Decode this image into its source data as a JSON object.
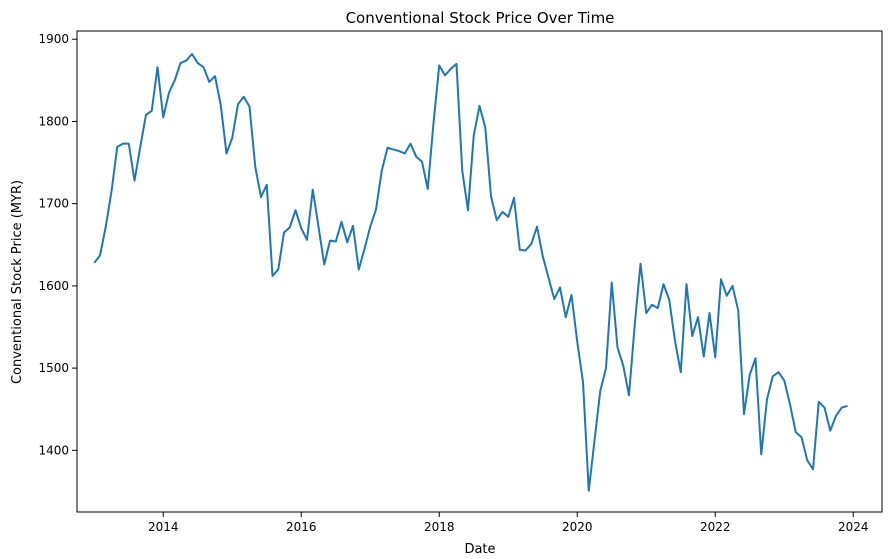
{
  "chart_data": {
    "type": "line",
    "title": "Conventional Stock Price Over Time",
    "xlabel": "Date",
    "ylabel": "Conventional Stock Price (MYR)",
    "x_ticks": [
      "2014",
      "2016",
      "2018",
      "2020",
      "2022",
      "2024"
    ],
    "y_ticks": [
      "1400",
      "1500",
      "1600",
      "1700",
      "1800",
      "1900"
    ],
    "xlim": [
      "2012-10",
      "2024-06"
    ],
    "ylim": [
      1325,
      1910
    ],
    "grid": false,
    "line_color": "#1f77b4",
    "series": [
      {
        "x": [
          "2013-01",
          "2013-02",
          "2013-03",
          "2013-04",
          "2013-05",
          "2013-06",
          "2013-07",
          "2013-08",
          "2013-09",
          "2013-10",
          "2013-11",
          "2013-12",
          "2014-01",
          "2014-02",
          "2014-03",
          "2014-04",
          "2014-05",
          "2014-06",
          "2014-07",
          "2014-08",
          "2014-09",
          "2014-10",
          "2014-11",
          "2014-12",
          "2015-01",
          "2015-02",
          "2015-03",
          "2015-04",
          "2015-05",
          "2015-06",
          "2015-07",
          "2015-08",
          "2015-09",
          "2015-10",
          "2015-11",
          "2015-12",
          "2016-01",
          "2016-02",
          "2016-03",
          "2016-04",
          "2016-05",
          "2016-06",
          "2016-07",
          "2016-08",
          "2016-09",
          "2016-10",
          "2016-11",
          "2016-12",
          "2017-01",
          "2017-02",
          "2017-03",
          "2017-04",
          "2017-05",
          "2017-06",
          "2017-07",
          "2017-08",
          "2017-09",
          "2017-10",
          "2017-11",
          "2017-12",
          "2018-01",
          "2018-02",
          "2018-03",
          "2018-04",
          "2018-05",
          "2018-06",
          "2018-07",
          "2018-08",
          "2018-09",
          "2018-10",
          "2018-11",
          "2018-12",
          "2019-01",
          "2019-02",
          "2019-03",
          "2019-04",
          "2019-05",
          "2019-06",
          "2019-07",
          "2019-08",
          "2019-09",
          "2019-10",
          "2019-11",
          "2019-12",
          "2020-01",
          "2020-02",
          "2020-03",
          "2020-04",
          "2020-05",
          "2020-06",
          "2020-07",
          "2020-08",
          "2020-09",
          "2020-10",
          "2020-11",
          "2020-12",
          "2021-01",
          "2021-02",
          "2021-03",
          "2021-04",
          "2021-05",
          "2021-06",
          "2021-07",
          "2021-08",
          "2021-09",
          "2021-10",
          "2021-11",
          "2021-12",
          "2022-01",
          "2022-02",
          "2022-03",
          "2022-04",
          "2022-05",
          "2022-06",
          "2022-07",
          "2022-08",
          "2022-09",
          "2022-10",
          "2022-11",
          "2022-12",
          "2023-01",
          "2023-02",
          "2023-03",
          "2023-04",
          "2023-05",
          "2023-06",
          "2023-07",
          "2023-08",
          "2023-09",
          "2023-10",
          "2023-11",
          "2023-12"
        ],
        "values": [
          1628,
          1637,
          1672,
          1715,
          1769,
          1773,
          1773,
          1728,
          1769,
          1808,
          1813,
          1866,
          1805,
          1835,
          1850,
          1871,
          1874,
          1882,
          1871,
          1866,
          1848,
          1855,
          1820,
          1761,
          1780,
          1821,
          1830,
          1818,
          1745,
          1708,
          1723,
          1612,
          1620,
          1665,
          1671,
          1692,
          1670,
          1656,
          1717,
          1672,
          1626,
          1655,
          1654,
          1678,
          1653,
          1673,
          1620,
          1645,
          1672,
          1693,
          1740,
          1768,
          1766,
          1764,
          1761,
          1773,
          1757,
          1751,
          1718,
          1798,
          1868,
          1856,
          1864,
          1870,
          1740,
          1692,
          1783,
          1819,
          1793,
          1709,
          1680,
          1690,
          1684,
          1707,
          1644,
          1643,
          1651,
          1672,
          1636,
          1610,
          1584,
          1598,
          1562,
          1589,
          1532,
          1483,
          1351,
          1412,
          1472,
          1500,
          1604,
          1525,
          1503,
          1467,
          1553,
          1627,
          1567,
          1577,
          1573,
          1602,
          1583,
          1533,
          1495,
          1602,
          1539,
          1562,
          1514,
          1567,
          1513,
          1608,
          1588,
          1600,
          1570,
          1444,
          1492,
          1512,
          1395,
          1462,
          1490,
          1495,
          1485,
          1456,
          1422,
          1416,
          1388,
          1377,
          1459,
          1452,
          1424,
          1442,
          1452,
          1454
        ]
      }
    ]
  }
}
